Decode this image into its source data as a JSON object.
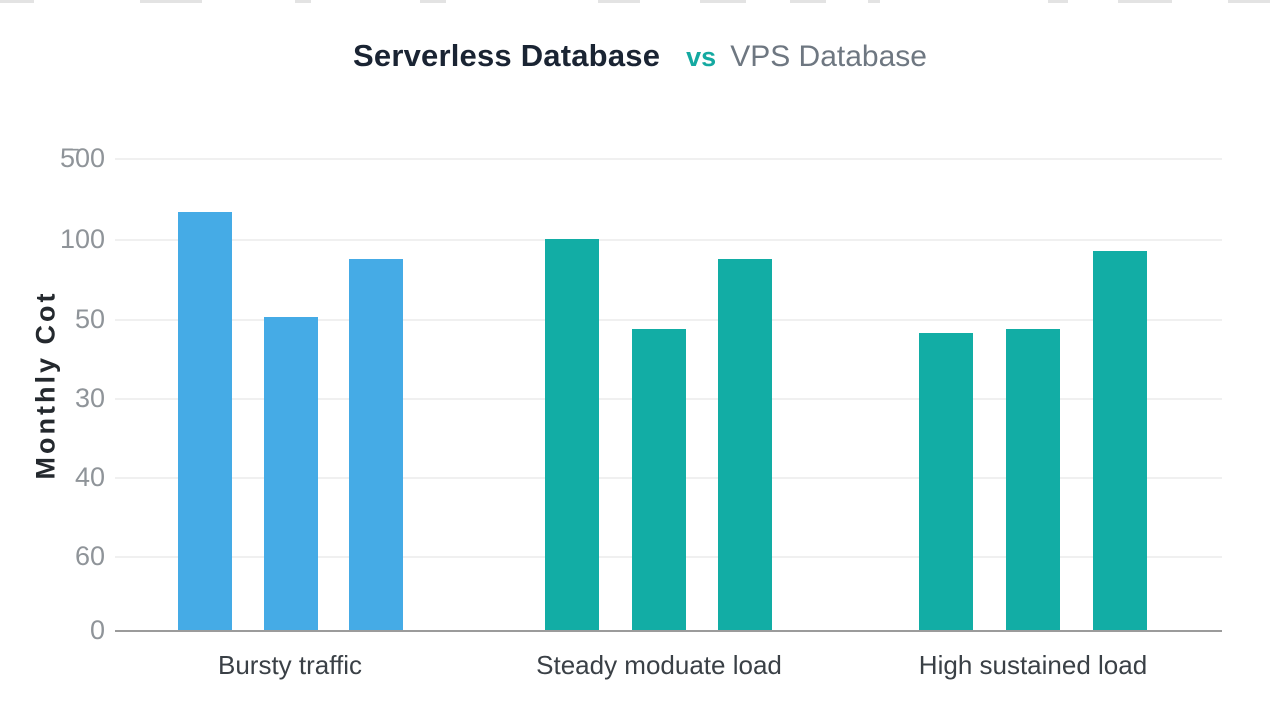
{
  "title": {
    "primary": "Serverless Database",
    "separator": "vs",
    "secondary": "VPS Database"
  },
  "colors": {
    "serverless_blue": "#45abe6",
    "vps_teal": "#12ada5",
    "title_primary": "#1a2433",
    "title_separator": "#14a9a1",
    "title_secondary": "#6e7781",
    "tick_text": "#8f9499",
    "axis_line": "#9b9b9b",
    "gridline": "#f0f0f0",
    "category_text": "#3a4046",
    "ylabel_text": "#24292e"
  },
  "chart_data": {
    "type": "bar",
    "title": "Serverless Database vs VPS Database",
    "ylabel": "Monthly Cot",
    "xlabel": "",
    "grid": true,
    "legend": false,
    "y_ticks": [
      "5̄00",
      "100",
      "50",
      "30",
      "40",
      "60",
      "0"
    ],
    "y_axis_note": "tick labels are non-monotonic as rendered in source image",
    "categories": [
      "Bursty traffic",
      "Steady moduate load",
      "High sustained load"
    ],
    "value_unit": "relative, 100 = height of the '100' gridline above baseline",
    "groups": [
      {
        "category": "Bursty traffic",
        "series_color_name": "serverless_blue",
        "bar_values": [
          107,
          80,
          95
        ]
      },
      {
        "category": "Steady moduate load",
        "series_color_name": "vps_teal",
        "bar_values": [
          100,
          77,
          95
        ]
      },
      {
        "category": "High sustained load",
        "series_color_name": "vps_teal",
        "bar_values": [
          76,
          77,
          97
        ]
      }
    ]
  }
}
